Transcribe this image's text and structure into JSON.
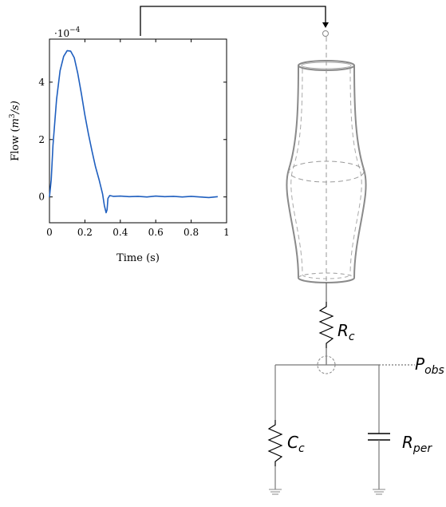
{
  "chart_data": {
    "type": "line",
    "xlabel": "Time (s)",
    "ylabel_prefix": "Flow (",
    "ylabel_unit": "m",
    "ylabel_exp": "3",
    "ylabel_suffix": "/s)",
    "scale_base": "·10",
    "scale_exp": "−4",
    "xlim": [
      0,
      1
    ],
    "ylim": [
      -0.9,
      5.5
    ],
    "xticks": [
      0,
      0.2,
      0.4,
      0.6,
      0.8,
      1
    ],
    "xtick_labels": [
      "0",
      "0.2",
      "0.4",
      "0.6",
      "0.8",
      "1"
    ],
    "yticks": [
      0,
      2,
      4
    ],
    "ytick_labels": [
      "0",
      "2",
      "4"
    ],
    "line_color": "#1f5fbf",
    "series": [
      {
        "x": [
          0.0,
          0.01,
          0.02,
          0.04,
          0.06,
          0.08,
          0.1,
          0.12,
          0.14,
          0.16,
          0.18,
          0.2,
          0.22,
          0.24,
          0.26,
          0.28,
          0.3,
          0.31,
          0.32,
          0.325,
          0.33,
          0.34,
          0.36,
          0.4,
          0.45,
          0.5,
          0.55,
          0.6,
          0.65,
          0.7,
          0.75,
          0.8,
          0.85,
          0.9,
          0.95
        ],
        "y": [
          0.0,
          0.6,
          1.8,
          3.4,
          4.4,
          4.9,
          5.1,
          5.08,
          4.85,
          4.3,
          3.6,
          2.85,
          2.2,
          1.6,
          1.05,
          0.6,
          0.1,
          -0.3,
          -0.55,
          -0.45,
          -0.05,
          0.05,
          0.02,
          0.03,
          0.01,
          0.02,
          0.0,
          0.03,
          0.01,
          0.02,
          0.0,
          0.02,
          0.0,
          -0.02,
          0.01
        ]
      }
    ]
  },
  "colors": {
    "vessel": "#8a8a8a",
    "vessel_dash": "#8f8f8f",
    "circuit": "#777777",
    "arrow": "#000000",
    "label": "#000000"
  },
  "labels": {
    "rc_main": "R",
    "rc_sub": "c",
    "cc_main": "C",
    "cc_sub": "c",
    "rper_main": "R",
    "rper_sub": "per",
    "pobs_main": "P",
    "pobs_sub": "obs"
  }
}
